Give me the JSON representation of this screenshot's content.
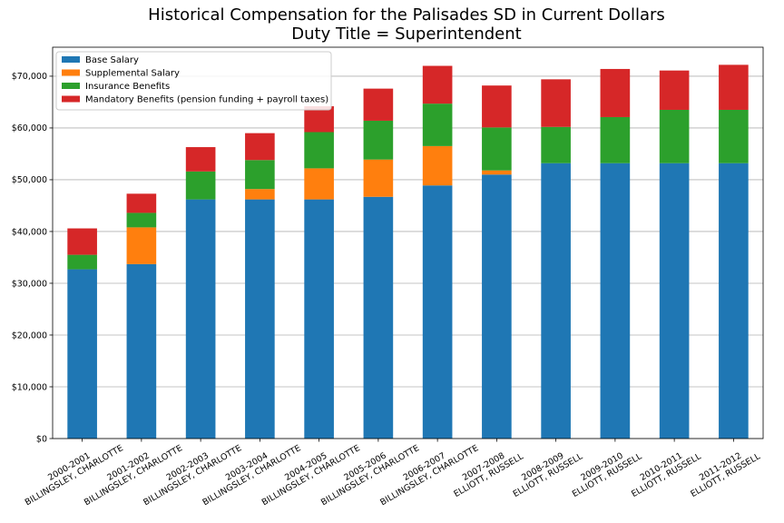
{
  "title_line1": "Historical Compensation for the Palisades SD in Current Dollars",
  "title_line2": "Duty Title = Superintendent",
  "chart_data": {
    "type": "bar",
    "stacked": true,
    "title": "Historical Compensation for the Palisades SD in Current Dollars\nDuty Title = Superintendent",
    "categories": [
      [
        "2000-2001",
        "BILLINGSLEY, CHARLOTTE"
      ],
      [
        "2001-2002",
        "BILLINGSLEY, CHARLOTTE"
      ],
      [
        "2002-2003",
        "BILLINGSLEY, CHARLOTTE"
      ],
      [
        "2003-2004",
        "BILLINGSLEY, CHARLOTTE"
      ],
      [
        "2004-2005",
        "BILLINGSLEY, CHARLOTTE"
      ],
      [
        "2005-2006",
        "BILLINGSLEY, CHARLOTTE"
      ],
      [
        "2006-2007",
        "BILLINGSLEY, CHARLOTTE"
      ],
      [
        "2007-2008",
        "ELLIOTT, RUSSELL"
      ],
      [
        "2008-2009",
        "ELLIOTT, RUSSELL"
      ],
      [
        "2009-2010",
        "ELLIOTT, RUSSELL"
      ],
      [
        "2010-2011",
        "ELLIOTT, RUSSELL"
      ],
      [
        "2011-2012",
        "ELLIOTT, RUSSELL"
      ]
    ],
    "series": [
      {
        "name": "Base Salary",
        "color": "#1f77b4",
        "values": [
          32700,
          33700,
          46200,
          46200,
          46200,
          46700,
          48900,
          51000,
          53200,
          53200,
          53200,
          53200
        ]
      },
      {
        "name": "Supplemental Salary",
        "color": "#ff7f0e",
        "values": [
          0,
          7100,
          0,
          2000,
          6000,
          7200,
          7600,
          800,
          0,
          0,
          0,
          0
        ]
      },
      {
        "name": "Insurance Benefits",
        "color": "#2ca02c",
        "values": [
          2800,
          2800,
          5400,
          5600,
          7000,
          7500,
          8200,
          8300,
          7000,
          8900,
          10300,
          10300
        ]
      },
      {
        "name": "Mandatory Benefits (pension funding + payroll taxes)",
        "color": "#d62728",
        "values": [
          5100,
          3700,
          4700,
          5200,
          5000,
          6200,
          7300,
          8100,
          9200,
          9300,
          7600,
          8700
        ]
      }
    ],
    "ylim": [
      0,
      75600
    ],
    "yticks": [
      0,
      10000,
      20000,
      30000,
      40000,
      50000,
      60000,
      70000
    ],
    "ytick_labels": [
      "$0",
      "$10,000",
      "$20,000",
      "$30,000",
      "$40,000",
      "$50,000",
      "$60,000",
      "$70,000"
    ],
    "xlabel": "",
    "ylabel": "",
    "grid": "y",
    "legend": "top-left"
  }
}
